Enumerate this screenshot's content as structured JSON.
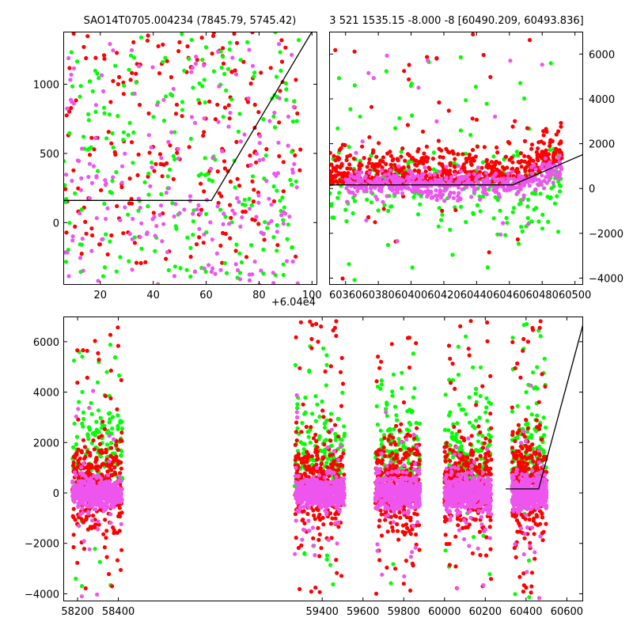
{
  "colors": {
    "red": "#ff0000",
    "green": "#00ff00",
    "violet": "#ee55ee",
    "model_line": "#000000"
  },
  "chart_data": [
    {
      "type": "scatter",
      "title": "SAO14T0705.004234 (7845.79, 5745.42)",
      "xlabel": "",
      "ylabel": "",
      "x_offset_label": "+6.04e4",
      "xlim": [
        6,
        102
      ],
      "ylim": [
        -450,
        1380
      ],
      "xticks": [
        20,
        40,
        60,
        80,
        100
      ],
      "yticks": [
        0,
        500,
        1000
      ],
      "ytick_labels": [
        "0",
        "500",
        "1000"
      ],
      "y_axis_side": "left",
      "grid": false,
      "series": [
        {
          "color_key": "red",
          "x_range": [
            6,
            96
          ],
          "y_range": [
            -300,
            1380
          ],
          "count": 220
        },
        {
          "color_key": "green",
          "x_range": [
            6,
            96
          ],
          "y_range": [
            -400,
            1380
          ],
          "count": 220
        },
        {
          "color_key": "violet",
          "x_range": [
            6,
            96
          ],
          "y_range": [
            -450,
            1300
          ],
          "count": 200
        }
      ],
      "model_line": [
        [
          6,
          160
        ],
        [
          62,
          160
        ],
        [
          100,
          1380
        ]
      ]
    },
    {
      "type": "scatter",
      "title": "3 521 1535.15 -8.000 -8 [60490.209, 60493.836]",
      "xlabel": "",
      "ylabel": "",
      "xlim": [
        60350,
        60505
      ],
      "ylim": [
        -4300,
        7000
      ],
      "xticks": [
        60360,
        60380,
        60400,
        60420,
        60440,
        60460,
        60480,
        60500
      ],
      "yticks": [
        -4000,
        -2000,
        0,
        2000,
        4000,
        6000
      ],
      "ytick_labels": [
        "−4000",
        "−2000",
        "0",
        "2000",
        "4000",
        "6000"
      ],
      "y_axis_side": "right",
      "grid": false,
      "series": [
        {
          "color_key": "green",
          "x_range": [
            60350,
            60492
          ],
          "y_range": [
            -4200,
            6000
          ],
          "count": 260
        },
        {
          "color_key": "red",
          "x_range": [
            60350,
            60492
          ],
          "y_range": [
            -4200,
            6900
          ],
          "count": 650
        },
        {
          "color_key": "violet",
          "x_range": [
            60360,
            60492
          ],
          "y_range": [
            -2500,
            6300
          ],
          "count": 520
        }
      ],
      "model_line": [
        [
          60350,
          160
        ],
        [
          60462,
          160
        ],
        [
          60505,
          1520
        ]
      ]
    },
    {
      "type": "scatter",
      "title": "",
      "xlabel": "",
      "ylabel": "",
      "xlim": [
        58130,
        60680
      ],
      "ylim": [
        -4300,
        7000
      ],
      "x_breaks": [
        [
          58450,
          59250
        ]
      ],
      "xticks": [
        58200,
        58400,
        59400,
        59600,
        59800,
        60000,
        60200,
        60400,
        60600
      ],
      "yticks": [
        -4000,
        -2000,
        0,
        2000,
        4000,
        6000
      ],
      "ytick_labels": [
        "−4000",
        "−2000",
        "0",
        "2000",
        "4000",
        "6000"
      ],
      "y_axis_side": "left",
      "grid": false,
      "seasons": [
        {
          "x_range": [
            58175,
            58420
          ],
          "core_halfwidth": 500,
          "spread_max": 6700
        },
        {
          "x_range": [
            59265,
            59510
          ],
          "core_halfwidth": 550,
          "spread_max": 6900
        },
        {
          "x_range": [
            59660,
            59880
          ],
          "core_halfwidth": 600,
          "spread_max": 6900
        },
        {
          "x_range": [
            60000,
            60230
          ],
          "core_halfwidth": 650,
          "spread_max": 6900
        },
        {
          "x_range": [
            60330,
            60500
          ],
          "core_halfwidth": 600,
          "spread_max": 6900
        }
      ],
      "model_line": [
        [
          60300,
          160
        ],
        [
          60462,
          160
        ],
        [
          60680,
          6700
        ]
      ]
    }
  ]
}
